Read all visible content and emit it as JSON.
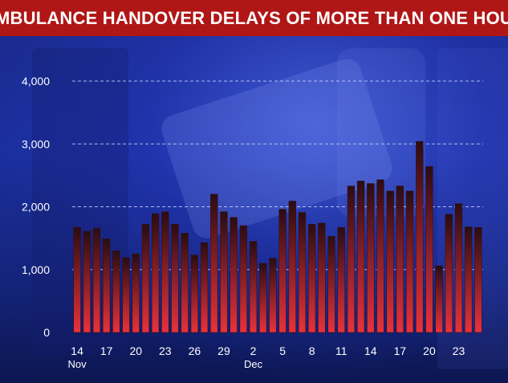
{
  "header": {
    "title": "AMBULANCE HANDOVER DELAYS OF MORE THAN ONE HOUR"
  },
  "colors": {
    "banner": "#b01616",
    "bar_top": "#2a0d12",
    "bar_bottom": "#e8323a",
    "grid": "#c8d2ff"
  },
  "chart_data": {
    "type": "bar",
    "title": "AMBULANCE HANDOVER DELAYS OF MORE THAN ONE HOUR",
    "xlabel": "",
    "ylabel": "",
    "ylim": [
      0,
      4000
    ],
    "yticks": [
      {
        "value": 0,
        "label": "0"
      },
      {
        "value": 1000,
        "label": "1,000"
      },
      {
        "value": 2000,
        "label": "2,000"
      },
      {
        "value": 3000,
        "label": "3,000"
      },
      {
        "value": 4000,
        "label": "4,000"
      }
    ],
    "grid": true,
    "categories": [
      "14 Nov",
      "15 Nov",
      "16 Nov",
      "17 Nov",
      "18 Nov",
      "19 Nov",
      "20 Nov",
      "21 Nov",
      "22 Nov",
      "23 Nov",
      "24 Nov",
      "25 Nov",
      "26 Nov",
      "27 Nov",
      "28 Nov",
      "29 Nov",
      "30 Nov",
      "1 Dec",
      "2 Dec",
      "3 Dec",
      "4 Dec",
      "5 Dec",
      "6 Dec",
      "7 Dec",
      "8 Dec",
      "9 Dec",
      "10 Dec",
      "11 Dec",
      "12 Dec",
      "13 Dec",
      "14 Dec",
      "15 Dec",
      "16 Dec",
      "17 Dec",
      "18 Dec",
      "19 Dec",
      "20 Dec",
      "21 Dec",
      "22 Dec",
      "23 Dec",
      "24 Dec",
      "25 Dec"
    ],
    "values": [
      1670,
      1610,
      1660,
      1490,
      1300,
      1190,
      1250,
      1720,
      1890,
      1920,
      1720,
      1580,
      1230,
      1430,
      2200,
      1920,
      1830,
      1700,
      1450,
      1100,
      1180,
      1960,
      2090,
      1910,
      1720,
      1740,
      1530,
      1670,
      2330,
      2410,
      2370,
      2430,
      2250,
      2330,
      2250,
      3040,
      2640,
      1060,
      1880,
      2050,
      1680,
      1670
    ],
    "xtick_labels": [
      {
        "index": 0,
        "label": "14",
        "sub": "Nov"
      },
      {
        "index": 3,
        "label": "17",
        "sub": ""
      },
      {
        "index": 6,
        "label": "20",
        "sub": ""
      },
      {
        "index": 9,
        "label": "23",
        "sub": ""
      },
      {
        "index": 12,
        "label": "26",
        "sub": ""
      },
      {
        "index": 15,
        "label": "29",
        "sub": ""
      },
      {
        "index": 18,
        "label": "2",
        "sub": "Dec"
      },
      {
        "index": 21,
        "label": "5",
        "sub": ""
      },
      {
        "index": 24,
        "label": "8",
        "sub": ""
      },
      {
        "index": 27,
        "label": "11",
        "sub": ""
      },
      {
        "index": 30,
        "label": "14",
        "sub": ""
      },
      {
        "index": 33,
        "label": "17",
        "sub": ""
      },
      {
        "index": 36,
        "label": "20",
        "sub": ""
      },
      {
        "index": 39,
        "label": "23",
        "sub": ""
      }
    ]
  }
}
